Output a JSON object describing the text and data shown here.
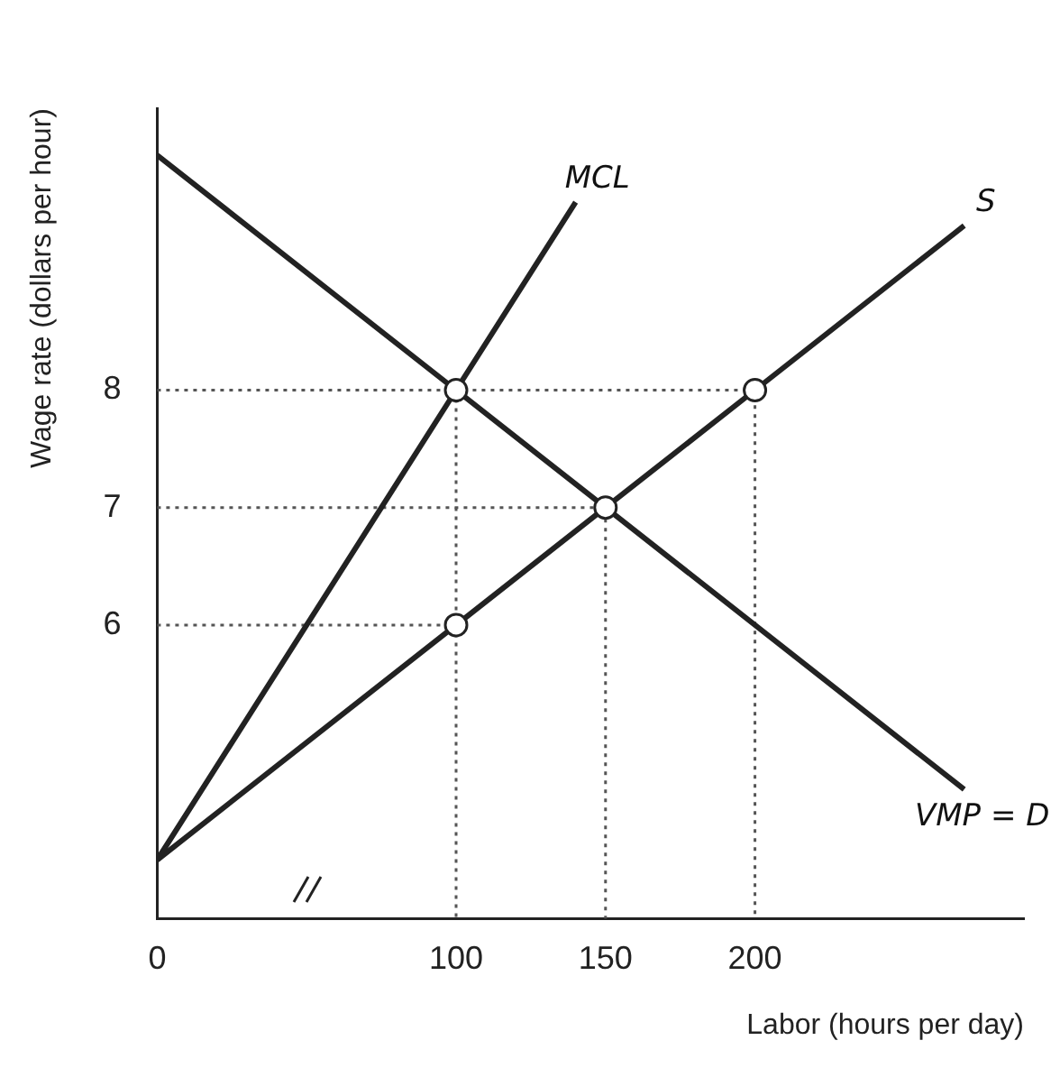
{
  "chart_data": {
    "type": "line",
    "xlabel": "Labor (hours per day)",
    "ylabel": "Wage rate (dollars per hour)",
    "xlim": [
      0,
      290
    ],
    "ylim": [
      3.5,
      10.4
    ],
    "xticks": [
      0,
      100,
      150,
      200
    ],
    "yticks": [
      6,
      7,
      8
    ],
    "grid": false,
    "legend": false,
    "marker": "none",
    "series": [
      {
        "name": "MCL",
        "color": "#222222",
        "x": [
          0,
          100,
          140
        ],
        "values": [
          4,
          8,
          9.6
        ]
      },
      {
        "name": "S",
        "color": "#222222",
        "x": [
          0,
          100,
          150,
          200,
          270
        ],
        "values": [
          4,
          6,
          7,
          8,
          9.4
        ]
      },
      {
        "name": "VMP = D",
        "color": "#222222",
        "x": [
          0,
          100,
          150,
          270
        ],
        "values": [
          10,
          8,
          7,
          4.6
        ]
      },
      {
        "color": "#555555",
        "line_style": "dotted",
        "x": [
          0,
          200,
          200
        ],
        "values": [
          8,
          8,
          3.5
        ]
      },
      {
        "color": "#555555",
        "line_style": "dotted",
        "x": [
          100,
          100
        ],
        "values": [
          8,
          3.5
        ]
      },
      {
        "color": "#555555",
        "line_style": "dotted",
        "x": [
          0,
          150,
          150
        ],
        "values": [
          7,
          7,
          3.5
        ]
      },
      {
        "color": "#555555",
        "line_style": "dotted",
        "x": [
          0,
          100
        ],
        "values": [
          6,
          6
        ]
      },
      {
        "type": "scatter",
        "marker": "circle",
        "color": "#222222",
        "x": [
          100,
          100,
          150,
          200
        ],
        "values": [
          8,
          6,
          7,
          8
        ]
      }
    ]
  }
}
